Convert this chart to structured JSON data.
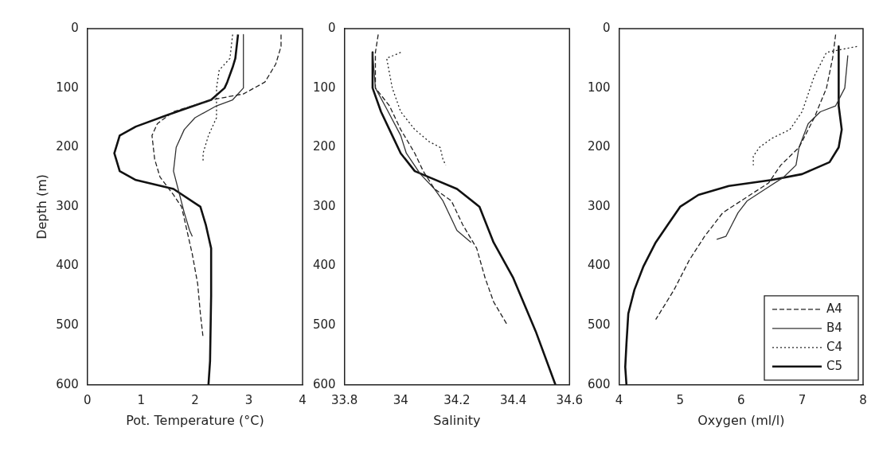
{
  "chart_data": [
    {
      "type": "line",
      "xlabel": "Pot. Temperature (°C)",
      "ylabel": "Depth (m)",
      "xlim": [
        0,
        4
      ],
      "xticks": [
        0,
        1,
        2,
        3,
        4
      ],
      "ylim": [
        600,
        0
      ],
      "yticks": [
        0,
        100,
        200,
        300,
        400,
        500,
        600
      ],
      "grid": false,
      "legend": false,
      "series": [
        {
          "color": "#222222",
          "line_style": "dashed",
          "x": [
            3.6,
            3.6,
            3.5,
            3.3,
            3.1,
            2.9,
            2.3,
            1.6,
            1.3,
            1.2,
            1.25,
            1.35,
            1.6,
            1.75,
            1.85,
            1.95,
            2.05,
            2.1,
            2.15
          ],
          "values": [
            10,
            30,
            60,
            90,
            100,
            110,
            120,
            140,
            160,
            180,
            220,
            250,
            280,
            300,
            340,
            380,
            430,
            480,
            520
          ]
        },
        {
          "color": "#333333",
          "line_style": "solid",
          "x": [
            2.9,
            2.9,
            2.7,
            2.4,
            2.0,
            1.8,
            1.65,
            1.6,
            1.7,
            1.8,
            1.9,
            1.95
          ],
          "values": [
            10,
            100,
            120,
            130,
            150,
            170,
            200,
            240,
            275,
            310,
            340,
            350
          ]
        },
        {
          "color": "#222222",
          "line_style": "dotted",
          "x": [
            2.7,
            2.65,
            2.45,
            2.4,
            2.4,
            2.25,
            2.15,
            2.15
          ],
          "values": [
            10,
            50,
            70,
            100,
            150,
            180,
            210,
            225
          ]
        },
        {
          "color": "#111111",
          "line_style": "solid",
          "x": [
            2.8,
            2.75,
            2.7,
            2.6,
            2.55,
            2.3,
            1.5,
            0.9,
            0.6,
            0.5,
            0.6,
            0.9,
            1.6,
            2.1,
            2.2,
            2.3,
            2.3,
            2.28,
            2.25
          ],
          "values": [
            10,
            50,
            65,
            90,
            100,
            120,
            145,
            165,
            180,
            210,
            240,
            255,
            270,
            300,
            330,
            370,
            450,
            560,
            600
          ]
        }
      ]
    },
    {
      "type": "line",
      "xlabel": "Salinity",
      "xlim": [
        33.8,
        34.6
      ],
      "xticks": [
        33.8,
        34,
        34.2,
        34.4,
        34.6
      ],
      "ylim": [
        600,
        0
      ],
      "yticks": [
        0,
        100,
        200,
        300,
        400,
        500,
        600
      ],
      "grid": false,
      "legend": false,
      "series": [
        {
          "color": "#222222",
          "line_style": "dashed",
          "x": [
            33.92,
            33.91,
            33.91,
            33.96,
            34.0,
            34.05,
            34.08,
            34.12,
            34.18,
            34.22,
            34.27,
            34.3,
            34.33,
            34.38
          ],
          "values": [
            10,
            40,
            100,
            130,
            170,
            210,
            240,
            270,
            290,
            330,
            370,
            420,
            460,
            500
          ]
        },
        {
          "color": "#333333",
          "line_style": "solid",
          "x": [
            33.9,
            33.91,
            33.95,
            34.0,
            34.02,
            34.07,
            34.12,
            34.15,
            34.2,
            34.25
          ],
          "values": [
            40,
            100,
            135,
            180,
            210,
            245,
            270,
            290,
            340,
            360
          ]
        },
        {
          "color": "#222222",
          "line_style": "dotted",
          "x": [
            34.0,
            33.95,
            33.97,
            34.0,
            34.05,
            34.1,
            34.14,
            34.15,
            34.16
          ],
          "values": [
            40,
            50,
            100,
            140,
            170,
            190,
            200,
            220,
            230
          ]
        },
        {
          "color": "#111111",
          "line_style": "solid",
          "x": [
            33.9,
            33.9,
            33.93,
            33.97,
            34.0,
            34.05,
            34.1,
            34.2,
            34.28,
            34.33,
            34.4,
            34.48,
            34.55
          ],
          "values": [
            40,
            100,
            140,
            180,
            210,
            240,
            250,
            270,
            300,
            360,
            420,
            510,
            600
          ]
        }
      ]
    },
    {
      "type": "line",
      "xlabel": "Oxygen (ml/l)",
      "xlim": [
        4,
        8
      ],
      "xticks": [
        4,
        5,
        6,
        7,
        8
      ],
      "ylim": [
        600,
        0
      ],
      "yticks": [
        0,
        100,
        200,
        300,
        400,
        500,
        600
      ],
      "grid": false,
      "legend": "bottom right",
      "series": [
        {
          "name": "A4",
          "color": "#222222",
          "line_style": "dashed",
          "x": [
            7.55,
            7.5,
            7.4,
            7.2,
            6.95,
            6.65,
            6.45,
            6.0,
            5.7,
            5.4,
            5.15,
            4.9,
            4.6
          ],
          "values": [
            10,
            50,
            100,
            150,
            200,
            230,
            260,
            290,
            310,
            350,
            390,
            440,
            490
          ]
        },
        {
          "name": "B4",
          "color": "#333333",
          "line_style": "solid",
          "x": [
            7.75,
            7.7,
            7.55,
            7.3,
            7.1,
            6.95,
            6.9,
            6.7,
            6.4,
            6.1,
            5.95,
            5.85,
            5.75,
            5.6
          ],
          "values": [
            45,
            100,
            130,
            140,
            160,
            200,
            230,
            250,
            270,
            290,
            310,
            330,
            350,
            355
          ]
        },
        {
          "name": "C4",
          "color": "#222222",
          "line_style": "dotted",
          "x": [
            7.9,
            7.4,
            7.2,
            7.0,
            6.8,
            6.5,
            6.3,
            6.2,
            6.2
          ],
          "values": [
            30,
            40,
            80,
            140,
            170,
            185,
            200,
            215,
            230
          ]
        },
        {
          "name": "C5",
          "color": "#111111",
          "line_style": "solid",
          "x": [
            7.6,
            7.6,
            7.65,
            7.6,
            7.45,
            7.0,
            6.5,
            5.8,
            5.3,
            5.0,
            4.8,
            4.6,
            4.4,
            4.25,
            4.15,
            4.12,
            4.1,
            4.12
          ],
          "values": [
            30,
            130,
            170,
            200,
            225,
            245,
            255,
            265,
            280,
            300,
            330,
            360,
            400,
            440,
            480,
            530,
            570,
            600
          ]
        }
      ]
    }
  ]
}
